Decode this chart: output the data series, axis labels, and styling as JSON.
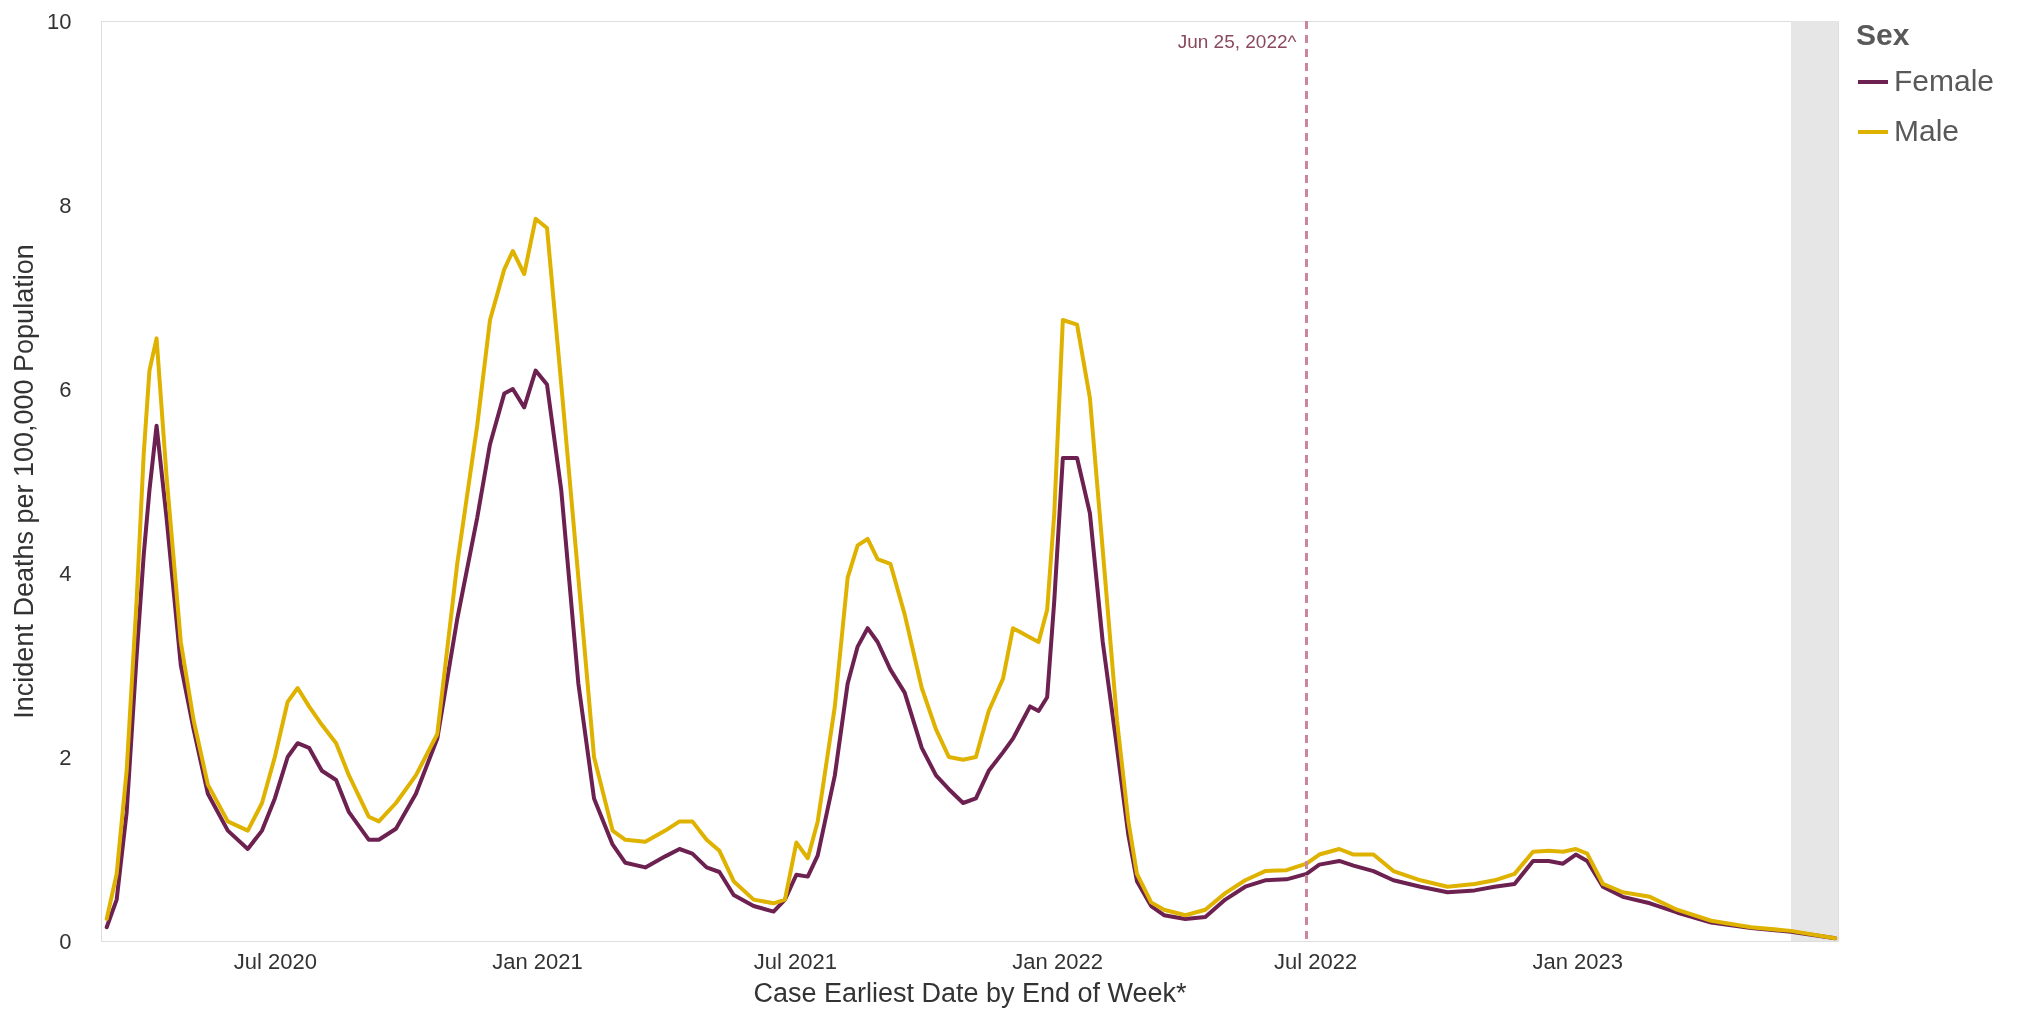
{
  "chart_data": {
    "type": "line",
    "xlabel": "Case Earliest Date by End of Week*",
    "ylabel": "Incident Deaths per 100,000 Population",
    "legend_title": "Sex",
    "legend": "right",
    "grid": false,
    "line_style": "solid",
    "marker": "none",
    "x": [
      "2020-03-05",
      "2020-03-12",
      "2020-03-19",
      "2020-03-26",
      "2020-03-31",
      "2020-04-04",
      "2020-04-09",
      "2020-04-16",
      "2020-04-26",
      "2020-05-05",
      "2020-05-15",
      "2020-05-29",
      "2020-06-12",
      "2020-06-22",
      "2020-07-01",
      "2020-07-10",
      "2020-07-17",
      "2020-07-25",
      "2020-08-03",
      "2020-08-13",
      "2020-08-22",
      "2020-09-05",
      "2020-09-12",
      "2020-09-24",
      "2020-10-08",
      "2020-10-23",
      "2020-11-06",
      "2020-11-20",
      "2020-11-29",
      "2020-12-09",
      "2020-12-15",
      "2020-12-23",
      "2020-12-31",
      "2021-01-08",
      "2021-01-18",
      "2021-01-30",
      "2021-02-10",
      "2021-02-23",
      "2021-03-04",
      "2021-03-18",
      "2021-04-01",
      "2021-04-11",
      "2021-04-20",
      "2021-04-30",
      "2021-05-09",
      "2021-05-19",
      "2021-06-02",
      "2021-06-16",
      "2021-06-24",
      "2021-07-02",
      "2021-07-10",
      "2021-07-17",
      "2021-07-29",
      "2021-08-07",
      "2021-08-14",
      "2021-08-21",
      "2021-08-28",
      "2021-09-06",
      "2021-09-16",
      "2021-09-28",
      "2021-10-08",
      "2021-10-17",
      "2021-10-27",
      "2021-11-05",
      "2021-11-14",
      "2021-11-24",
      "2021-12-01",
      "2021-12-13",
      "2021-12-19",
      "2021-12-25",
      "2021-12-30",
      "2022-01-05",
      "2022-01-15",
      "2022-01-24",
      "2022-02-02",
      "2022-02-12",
      "2022-02-20",
      "2022-02-26",
      "2022-03-08",
      "2022-03-17",
      "2022-04-01",
      "2022-04-15",
      "2022-04-29",
      "2022-05-13",
      "2022-05-27",
      "2022-06-11",
      "2022-06-25",
      "2022-07-04",
      "2022-07-18",
      "2022-07-28",
      "2022-08-11",
      "2022-08-25",
      "2022-09-13",
      "2022-10-02",
      "2022-10-21",
      "2022-11-04",
      "2022-11-18",
      "2022-12-01",
      "2022-12-12",
      "2022-12-22",
      "2022-12-31",
      "2023-01-08",
      "2023-01-19",
      "2023-02-02",
      "2023-02-21",
      "2023-03-12",
      "2023-04-05",
      "2023-05-03",
      "2023-05-31",
      "2023-07-01"
    ],
    "series": [
      {
        "name": "Female",
        "color": "#6d2150",
        "values": [
          0.15,
          0.45,
          1.4,
          3.1,
          4.2,
          4.9,
          5.6,
          4.6,
          3.0,
          2.3,
          1.6,
          1.2,
          1.0,
          1.2,
          1.55,
          2.0,
          2.15,
          2.1,
          1.85,
          1.75,
          1.4,
          1.1,
          1.1,
          1.22,
          1.6,
          2.2,
          3.5,
          4.6,
          5.4,
          5.95,
          6.0,
          5.8,
          6.2,
          6.05,
          4.9,
          2.8,
          1.55,
          1.05,
          0.85,
          0.8,
          0.92,
          1.0,
          0.95,
          0.8,
          0.75,
          0.5,
          0.38,
          0.32,
          0.45,
          0.72,
          0.7,
          0.93,
          1.8,
          2.8,
          3.2,
          3.4,
          3.25,
          2.95,
          2.7,
          2.1,
          1.8,
          1.65,
          1.5,
          1.55,
          1.85,
          2.05,
          2.2,
          2.55,
          2.5,
          2.65,
          3.7,
          5.25,
          5.25,
          4.65,
          3.25,
          2.1,
          1.15,
          0.65,
          0.38,
          0.28,
          0.24,
          0.26,
          0.45,
          0.59,
          0.66,
          0.67,
          0.73,
          0.83,
          0.87,
          0.82,
          0.76,
          0.66,
          0.59,
          0.53,
          0.55,
          0.59,
          0.62,
          0.87,
          0.87,
          0.84,
          0.94,
          0.87,
          0.59,
          0.48,
          0.41,
          0.31,
          0.2,
          0.14,
          0.1,
          0.03
        ]
      },
      {
        "name": "Male",
        "color": "#dfb200",
        "values": [
          0.24,
          0.73,
          1.85,
          3.7,
          5.3,
          6.2,
          6.55,
          5.05,
          3.25,
          2.4,
          1.7,
          1.3,
          1.2,
          1.5,
          2.0,
          2.6,
          2.75,
          2.55,
          2.35,
          2.15,
          1.8,
          1.35,
          1.3,
          1.5,
          1.8,
          2.25,
          4.1,
          5.6,
          6.75,
          7.3,
          7.5,
          7.25,
          7.85,
          7.75,
          6.05,
          3.95,
          2.0,
          1.2,
          1.1,
          1.08,
          1.2,
          1.3,
          1.3,
          1.1,
          0.98,
          0.65,
          0.45,
          0.41,
          0.45,
          1.07,
          0.9,
          1.3,
          2.55,
          3.95,
          4.3,
          4.37,
          4.15,
          4.1,
          3.55,
          2.75,
          2.3,
          2.0,
          1.97,
          2.0,
          2.5,
          2.85,
          3.4,
          3.3,
          3.25,
          3.6,
          4.65,
          6.75,
          6.7,
          5.9,
          4.25,
          2.4,
          1.3,
          0.73,
          0.42,
          0.34,
          0.28,
          0.34,
          0.52,
          0.66,
          0.76,
          0.77,
          0.84,
          0.94,
          1.0,
          0.94,
          0.94,
          0.76,
          0.66,
          0.59,
          0.62,
          0.66,
          0.73,
          0.97,
          0.98,
          0.97,
          1.0,
          0.95,
          0.62,
          0.53,
          0.48,
          0.34,
          0.22,
          0.15,
          0.11,
          0.03
        ]
      }
    ],
    "xlim": [
      "2020-03-01",
      "2023-07-03"
    ],
    "xticks": [
      {
        "value": "2020-07-01",
        "label": "Jul 2020"
      },
      {
        "value": "2021-01-01",
        "label": "Jan 2021"
      },
      {
        "value": "2021-07-01",
        "label": "Jul 2021"
      },
      {
        "value": "2022-01-01",
        "label": "Jan 2022"
      },
      {
        "value": "2022-07-01",
        "label": "Jul 2022"
      },
      {
        "value": "2023-01-01",
        "label": "Jan 2023"
      }
    ],
    "ylim": [
      0,
      10
    ],
    "yticks": [
      0,
      2,
      4,
      6,
      8,
      10
    ],
    "ref_lines": [
      {
        "axis": "x",
        "value": "2022-06-25",
        "label": "Jun 25, 2022^",
        "color": "#c9879a",
        "line_style": "dashed"
      }
    ],
    "bands": [
      {
        "axis": "x",
        "from": "2023-05-31",
        "to": "2023-07-03",
        "label": null,
        "color": "#e6e6e6"
      }
    ]
  }
}
